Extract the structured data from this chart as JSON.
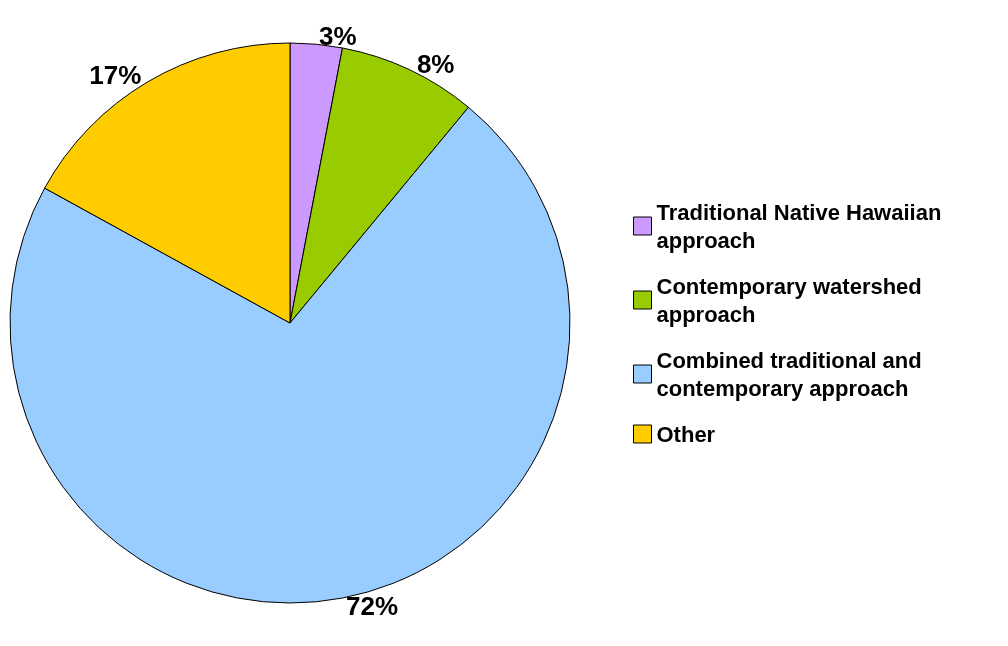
{
  "chart_data": {
    "type": "pie",
    "categories": [
      "Traditional Native Hawaiian approach",
      "Contemporary watershed approach",
      "Combined traditional and contemporary approach",
      "Other"
    ],
    "values": [
      3,
      8,
      72,
      17
    ],
    "colors": [
      "#cc99ff",
      "#99cc00",
      "#99ccff",
      "#ffcc00"
    ],
    "value_labels": [
      "3%",
      "8%",
      "72%",
      "17%"
    ],
    "legend": "right"
  }
}
